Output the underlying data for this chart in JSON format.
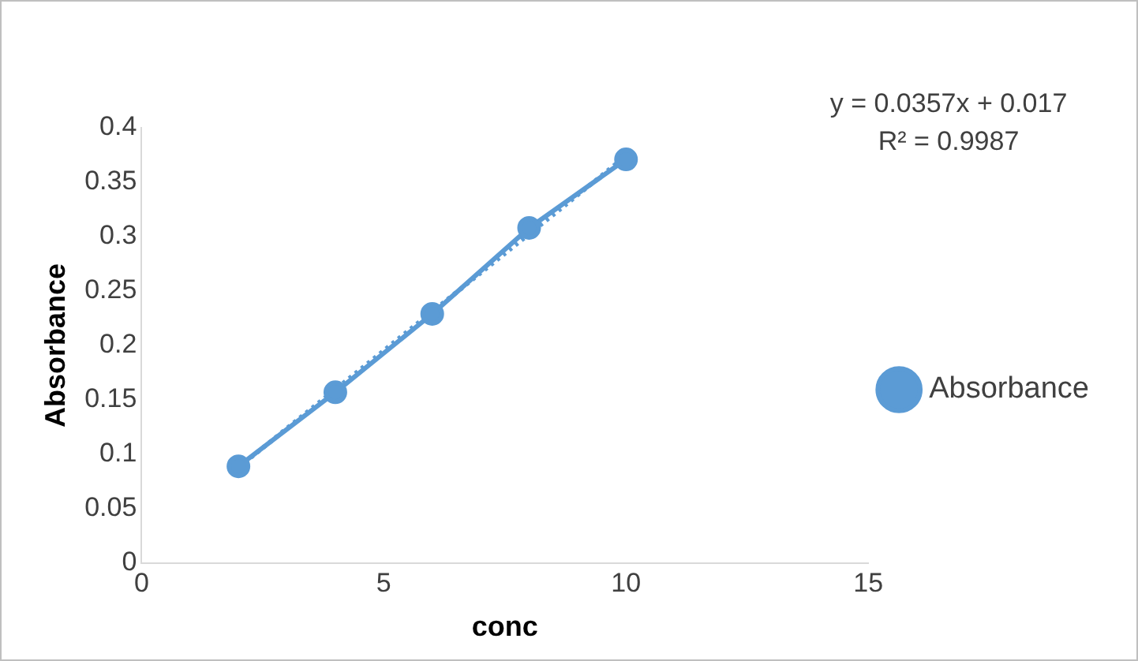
{
  "chart_data": {
    "type": "line",
    "xlabel": "conc",
    "ylabel": "Absorbance",
    "xlim": [
      0,
      15
    ],
    "xticks": [
      0,
      5,
      10,
      15
    ],
    "ylim": [
      0,
      0.4
    ],
    "yticks": [
      0,
      0.05,
      0.1,
      0.15,
      0.2,
      0.25,
      0.3,
      0.35,
      0.4
    ],
    "x": [
      2,
      4,
      6,
      8,
      10
    ],
    "series": [
      {
        "name": "Absorbance",
        "color": "#5b9bd5",
        "values": [
          0.089,
          0.157,
          0.229,
          0.308,
          0.371
        ],
        "marker": "circle",
        "line_style": "solid"
      },
      {
        "type": "line",
        "color": "#5b9bd5",
        "x": [
          2,
          10
        ],
        "values": [
          0.088,
          0.374
        ],
        "marker": "none",
        "line_style": "dotted"
      }
    ],
    "annotations": [
      "y = 0.0357x + 0.017",
      "R² = 0.9987"
    ],
    "legend": "right",
    "grid": false
  }
}
